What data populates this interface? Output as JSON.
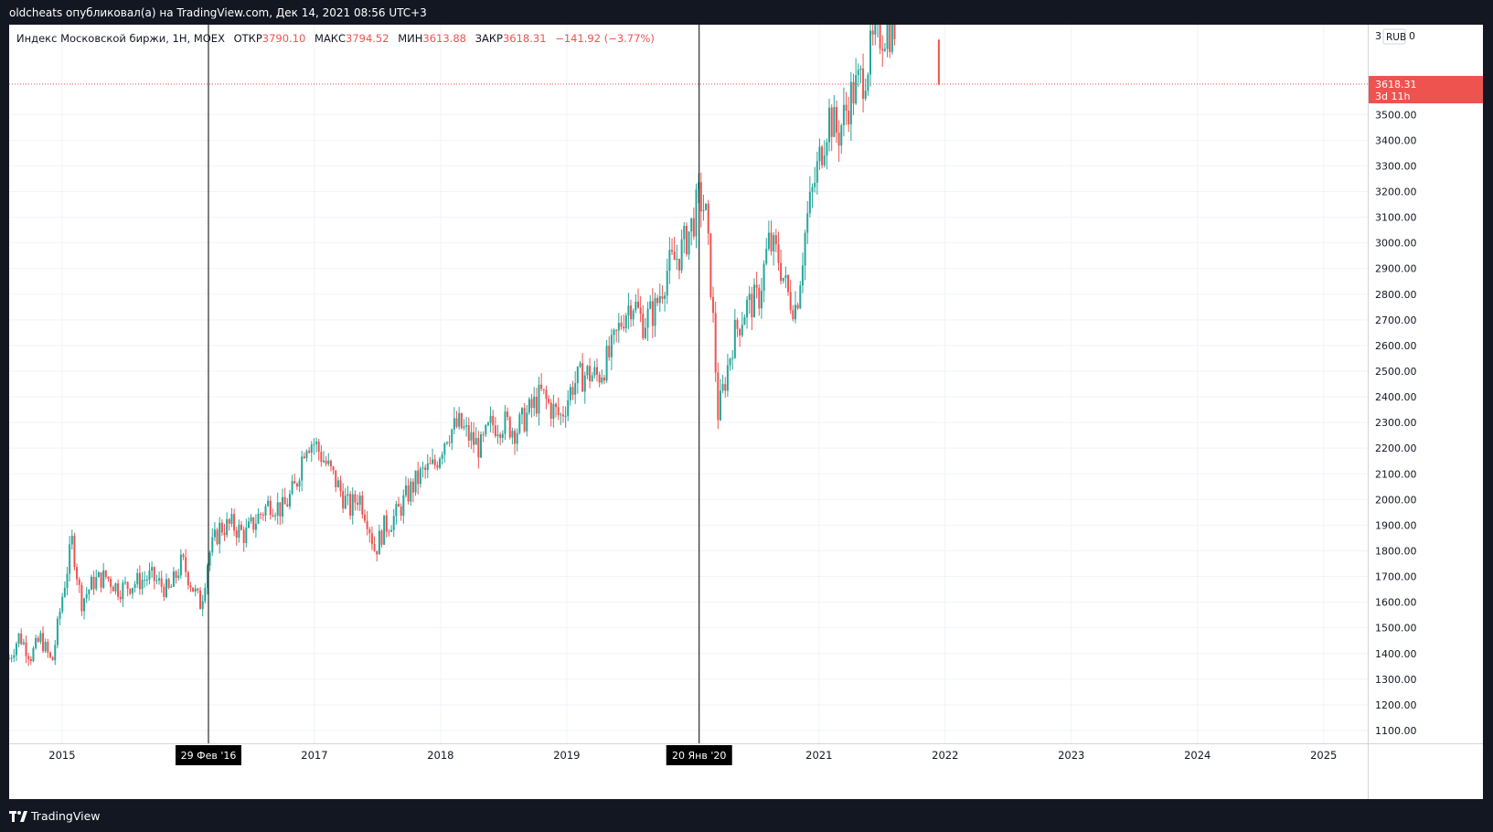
{
  "header": {
    "publish_text": "oldcheats опубликовал(а) на TradingView.com, Дек 14, 2021 08:56 UTC+3"
  },
  "legend": {
    "symbol": "Индекс Московской биржи, 1Н, MOEX",
    "open_label": "ОТКР",
    "open_value": "3790.10",
    "high_label": "МАКС",
    "high_value": "3794.52",
    "low_label": "МИН",
    "low_value": "3613.88",
    "close_label": "ЗАКР",
    "close_value": "3618.31",
    "change": "−141.92 (−3.77%)"
  },
  "price_axis": {
    "currency_button": "RUB",
    "top_partial_label": "3",
    "top_partial_label_right": "0",
    "price_tag": "3618.31",
    "countdown_tag": "3d 11h"
  },
  "footer": {
    "brand": "TradingView"
  },
  "colors": {
    "up": "#26a69a",
    "down": "#ef5350",
    "background_frame": "#131722",
    "plot_background": "#ffffff",
    "grid": "#f0f3fa"
  },
  "chart_data": {
    "type": "candlestick",
    "timeframe": "1W",
    "ylim": [
      1050,
      3850
    ],
    "y_ticks": [
      1100,
      1200,
      1300,
      1400,
      1500,
      1600,
      1700,
      1800,
      1900,
      2000,
      2100,
      2200,
      2300,
      2400,
      2500,
      2600,
      2700,
      2800,
      2900,
      3000,
      3100,
      3200,
      3300,
      3400,
      3500
    ],
    "x_ticks": [
      {
        "label": "2015",
        "year": 2015
      },
      {
        "label": "2017",
        "year": 2017
      },
      {
        "label": "2018",
        "year": 2018
      },
      {
        "label": "2019",
        "year": 2019
      },
      {
        "label": "2021",
        "year": 2021
      },
      {
        "label": "2022",
        "year": 2022
      },
      {
        "label": "2023",
        "year": 2023
      },
      {
        "label": "2024",
        "year": 2024
      },
      {
        "label": "2025",
        "year": 2025
      }
    ],
    "x_range_years": [
      2014.58,
      2025.35
    ],
    "markers": [
      {
        "label": "29 Фев '16",
        "year": 2016.16
      },
      {
        "label": "20 Янв '20",
        "year": 2020.05
      }
    ],
    "last_price": 3618.31,
    "last_bar_year": 2021.95,
    "last_bar": {
      "open": 3790.1,
      "high": 3794.52,
      "low": 3613.88,
      "close": 3618.31
    },
    "price_path": [
      [
        2014.58,
        1380
      ],
      [
        2014.66,
        1470
      ],
      [
        2014.75,
        1390
      ],
      [
        2014.83,
        1460
      ],
      [
        2014.92,
        1360
      ],
      [
        2015.0,
        1620
      ],
      [
        2015.08,
        1840
      ],
      [
        2015.15,
        1600
      ],
      [
        2015.25,
        1680
      ],
      [
        2015.35,
        1700
      ],
      [
        2015.45,
        1650
      ],
      [
        2015.6,
        1680
      ],
      [
        2015.7,
        1700
      ],
      [
        2015.85,
        1640
      ],
      [
        2015.95,
        1760
      ],
      [
        2016.05,
        1640
      ],
      [
        2016.1,
        1590
      ],
      [
        2016.16,
        1780
      ],
      [
        2016.25,
        1890
      ],
      [
        2016.35,
        1900
      ],
      [
        2016.45,
        1860
      ],
      [
        2016.55,
        1930
      ],
      [
        2016.65,
        1990
      ],
      [
        2016.75,
        1960
      ],
      [
        2016.85,
        2050
      ],
      [
        2016.93,
        2230
      ],
      [
        2017.0,
        2220
      ],
      [
        2017.08,
        2150
      ],
      [
        2017.18,
        2060
      ],
      [
        2017.28,
        1960
      ],
      [
        2017.35,
        2020
      ],
      [
        2017.42,
        1930
      ],
      [
        2017.48,
        1800
      ],
      [
        2017.55,
        1890
      ],
      [
        2017.65,
        1940
      ],
      [
        2017.75,
        2030
      ],
      [
        2017.85,
        2100
      ],
      [
        2017.95,
        2130
      ],
      [
        2018.05,
        2260
      ],
      [
        2018.15,
        2290
      ],
      [
        2018.25,
        2230
      ],
      [
        2018.32,
        2200
      ],
      [
        2018.4,
        2290
      ],
      [
        2018.5,
        2300
      ],
      [
        2018.6,
        2270
      ],
      [
        2018.7,
        2340
      ],
      [
        2018.8,
        2410
      ],
      [
        2018.87,
        2360
      ],
      [
        2018.95,
        2320
      ],
      [
        2019.05,
        2450
      ],
      [
        2019.15,
        2490
      ],
      [
        2019.25,
        2480
      ],
      [
        2019.35,
        2570
      ],
      [
        2019.45,
        2720
      ],
      [
        2019.52,
        2780
      ],
      [
        2019.6,
        2690
      ],
      [
        2019.7,
        2740
      ],
      [
        2019.8,
        2900
      ],
      [
        2019.9,
        2960
      ],
      [
        2020.0,
        3080
      ],
      [
        2020.05,
        3180
      ],
      [
        2020.1,
        3120
      ],
      [
        2020.15,
        2790
      ],
      [
        2020.2,
        2330
      ],
      [
        2020.25,
        2450
      ],
      [
        2020.32,
        2630
      ],
      [
        2020.42,
        2750
      ],
      [
        2020.52,
        2780
      ],
      [
        2020.6,
        3000
      ],
      [
        2020.68,
        2940
      ],
      [
        2020.75,
        2800
      ],
      [
        2020.82,
        2750
      ],
      [
        2020.9,
        3080
      ],
      [
        2021.0,
        3320
      ],
      [
        2021.08,
        3500
      ],
      [
        2021.15,
        3420
      ],
      [
        2021.25,
        3570
      ],
      [
        2021.35,
        3650
      ],
      [
        2021.45,
        3800
      ],
      [
        2021.52,
        3830
      ],
      [
        2021.6,
        3840
      ]
    ]
  }
}
